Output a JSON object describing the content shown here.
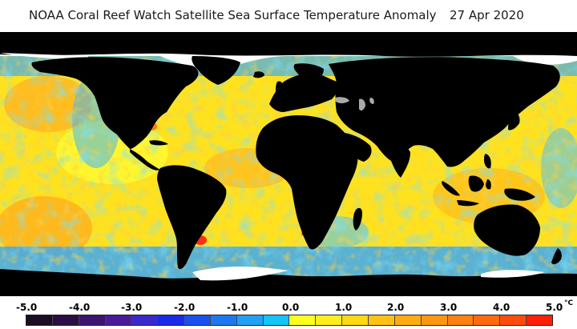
{
  "title": {
    "main": "NOAA Coral Reef Watch Satellite Sea Surface Temperature Anomaly",
    "date": "27 Apr 2020"
  },
  "legend": {
    "ticks": [
      "-5.0",
      "-4.0",
      "-3.0",
      "-2.0",
      "-1.0",
      "0.0",
      "1.0",
      "2.0",
      "3.0",
      "4.0",
      "5.0"
    ],
    "unit": "°C",
    "colors": [
      "#1a0d24",
      "#2b0f44",
      "#3c1570",
      "#4a1a9a",
      "#3a2acb",
      "#1a2ae8",
      "#1a50f0",
      "#1e78f4",
      "#22a0f6",
      "#14c4f6",
      "#ffff1e",
      "#ffee1a",
      "#ffd814",
      "#ffc214",
      "#ffac12",
      "#ff9612",
      "#ff8010",
      "#ff6a0e",
      "#ff4c0c",
      "#ff2008"
    ]
  },
  "map": {
    "ocean_colors": [
      "#ffff33",
      "#ffe01e",
      "#ffc31a",
      "#ffa514",
      "#4ec0f0",
      "#2ea0f0",
      "#66dcf6",
      "#ffd020"
    ],
    "land_color": "#000000",
    "ice_color": "#ffffff",
    "lake_color": "#aaaaaa"
  }
}
